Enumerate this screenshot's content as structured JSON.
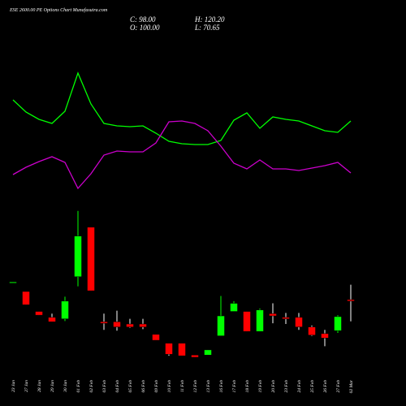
{
  "chart_data": {
    "type": "candlestick",
    "title": "ESE 2600.00 PE Options Chart Munafasutra.com",
    "ohlc_labels": {
      "close": "C: 98.00",
      "high": "H: 120.20",
      "open": "O: 100.00",
      "low": "L: 70.65"
    },
    "categories": [
      "23 Jan",
      "27 Jan",
      "28 Jan",
      "29 Jan",
      "30 Jan",
      "01 Feb",
      "02 Feb",
      "03 Feb",
      "04 Feb",
      "05 Feb",
      "06 Feb",
      "09 Feb",
      "10 Feb",
      "11 Feb",
      "12 Feb",
      "13 Feb",
      "16 Feb",
      "17 Feb",
      "18 Feb",
      "19 Feb",
      "20 Feb",
      "23 Feb",
      "24 Feb",
      "25 Feb",
      "26 Feb",
      "27 Feb",
      "02 Mar"
    ],
    "open": [
      124,
      111,
      84,
      76,
      74,
      131,
      198,
      70,
      70,
      67,
      67,
      53,
      41,
      41,
      25,
      25,
      51,
      84,
      84,
      57,
      81,
      76,
      76,
      63,
      54,
      58,
      100
    ],
    "high": [
      124,
      111,
      84,
      81,
      104,
      220,
      198,
      81,
      85,
      74,
      74,
      53,
      41,
      41,
      25,
      32,
      105,
      98,
      84,
      88,
      95,
      82,
      82,
      65,
      59,
      79,
      120.2
    ],
    "low": [
      124,
      93,
      79,
      70,
      71,
      118,
      112,
      59,
      58,
      62,
      60,
      45,
      24,
      24,
      22,
      25,
      51,
      84,
      57,
      57,
      68,
      67,
      59,
      51,
      37,
      55,
      70.65
    ],
    "close": [
      124,
      93,
      79,
      70,
      98,
      186,
      112,
      68,
      63,
      63,
      63,
      45,
      26,
      24,
      22,
      32,
      78,
      95,
      57,
      86,
      78,
      74,
      63,
      52,
      48,
      77,
      98
    ],
    "up_color": "#00ff00",
    "down_color": "#ff0000",
    "series": [
      {
        "color": "#00ff00",
        "values": [
          127,
          112,
          103,
          98,
          113,
          160,
          122,
          98,
          95,
          94,
          95,
          86,
          76,
          73,
          72,
          72,
          77,
          102,
          111,
          92,
          106,
          103,
          101,
          95,
          89,
          87,
          101
        ]
      },
      {
        "color": "#cc00cc",
        "values": [
          35,
          44,
          51,
          57,
          50,
          18,
          36,
          59,
          64,
          63,
          63,
          74,
          100,
          101,
          98,
          89,
          70,
          49,
          42,
          53,
          42,
          42,
          40,
          43,
          46,
          50,
          37
        ]
      }
    ]
  }
}
